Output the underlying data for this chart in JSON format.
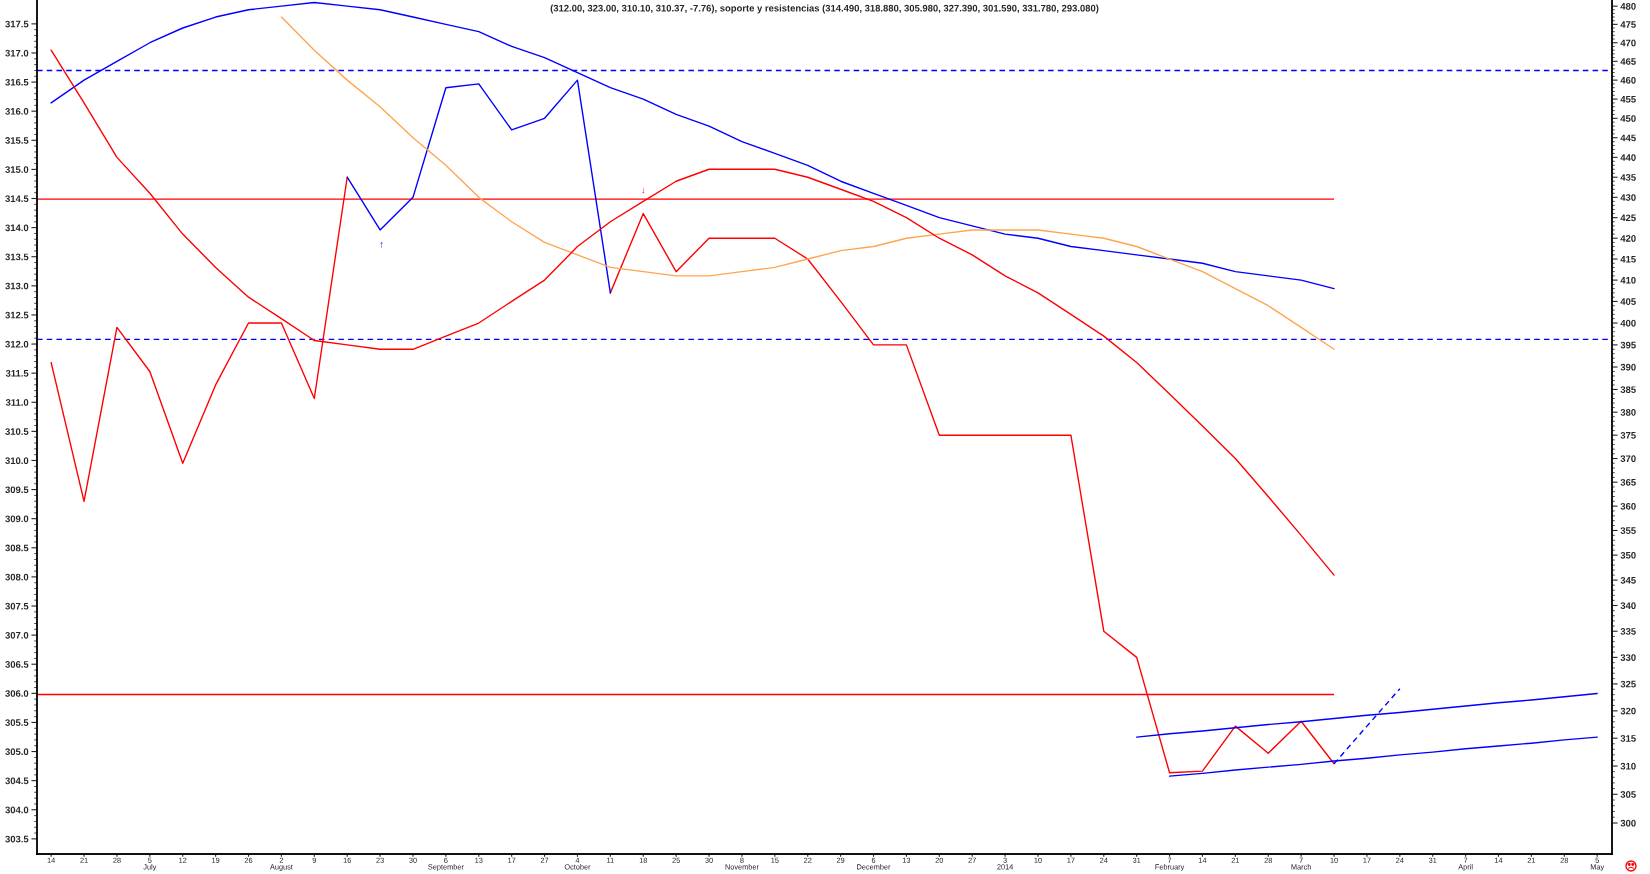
{
  "chart_data": {
    "type": "line",
    "title": "(312.00, 323.00, 310.10, 310.37, -7.76), soporte y resistencias (314.490, 318.880, 305.980, 327.390, 301.590, 331.780, 293.080)",
    "categories": [
      "14",
      "21",
      "28",
      "5\nJuly",
      "12",
      "19",
      "26",
      "2\nAugust",
      "9",
      "16",
      "23",
      "30",
      "6\nSeptember",
      "13",
      "17",
      "27",
      "4\nOctober",
      "11",
      "18",
      "25",
      "30",
      "8\nNovember",
      "15",
      "22",
      "29",
      "6\nDecember",
      "13",
      "20",
      "27",
      "3\n2014",
      "10",
      "17",
      "24",
      "31",
      "7\nFebruary",
      "14",
      "21",
      "28",
      "7\nMarch",
      "10",
      "17",
      "24",
      "31",
      "7\nApril",
      "14",
      "21",
      "28",
      "5\nMay"
    ],
    "series": [
      {
        "color": "#ff0000",
        "axis": "y2",
        "values": [
          391,
          361,
          399,
          389,
          369,
          386,
          400,
          400,
          383,
          435,
          null,
          null,
          null,
          null,
          null,
          null,
          null,
          407,
          426,
          412,
          420,
          420,
          420,
          415,
          405,
          395,
          395,
          375,
          375,
          375,
          375,
          375,
          335,
          330,
          308.8,
          309.1,
          317.2,
          312.3,
          318.1,
          310.4,
          null,
          null,
          null,
          null,
          null,
          null,
          null,
          null
        ]
      },
      {
        "color": "#0000ff",
        "axis": "y2",
        "values": [
          null,
          null,
          null,
          null,
          null,
          null,
          null,
          null,
          null,
          435,
          422,
          430,
          458,
          459,
          447,
          450,
          460,
          407,
          null,
          null,
          null,
          null,
          null,
          null,
          null,
          null,
          null,
          null,
          null,
          null,
          null,
          null,
          null,
          null,
          null,
          null,
          null,
          null,
          null,
          null,
          null,
          null,
          null,
          null,
          null,
          null,
          null,
          null
        ]
      },
      {
        "color": "#0000ff",
        "axis": "y2",
        "values": [
          454,
          460,
          465,
          470,
          474,
          477,
          479,
          480,
          481,
          480,
          479,
          477,
          475,
          473,
          469,
          466,
          462,
          458,
          455,
          451,
          448,
          444,
          441,
          438,
          434,
          431,
          428,
          425,
          423,
          421,
          420,
          418,
          417,
          416,
          415,
          414,
          412,
          411,
          410,
          408,
          null,
          null,
          null,
          null,
          null,
          null,
          null,
          null
        ]
      },
      {
        "color": "#ffa54f",
        "axis": "y2",
        "values": [
          null,
          null,
          null,
          null,
          null,
          null,
          null,
          477,
          468,
          460,
          453,
          445,
          438,
          430,
          424,
          419,
          416,
          413,
          412,
          411,
          411,
          412,
          413,
          415,
          417,
          418,
          420,
          421,
          422,
          422,
          422,
          421,
          420,
          418,
          415,
          412,
          408,
          404,
          399,
          394,
          null,
          null,
          null,
          null,
          null,
          null,
          null,
          null
        ]
      },
      {
        "color": "#ff0000",
        "axis": "y2",
        "values": [
          468,
          454,
          440,
          431,
          421,
          413,
          406,
          401,
          396,
          395,
          394,
          394,
          397,
          400,
          405,
          410,
          418,
          424,
          429,
          434,
          437,
          437,
          437,
          435,
          432,
          429,
          425,
          420,
          416,
          411,
          407,
          402,
          397,
          391,
          384,
          377,
          370,
          362,
          354,
          346,
          null,
          null,
          null,
          null,
          null,
          null,
          null,
          null
        ]
      },
      {
        "color": "#0000ff",
        "axis": "y2",
        "values": [
          null,
          null,
          null,
          null,
          null,
          null,
          null,
          null,
          null,
          null,
          null,
          null,
          null,
          null,
          null,
          null,
          null,
          null,
          null,
          null,
          null,
          null,
          null,
          null,
          null,
          null,
          null,
          null,
          null,
          null,
          null,
          null,
          null,
          315.2,
          315.8,
          316.3,
          316.9,
          317.5,
          318.0,
          318.6,
          319.2,
          319.7,
          320.3,
          320.9,
          321.5,
          322.0,
          322.6,
          323.2
        ]
      },
      {
        "color": "#0000ff",
        "axis": "y2",
        "values": [
          null,
          null,
          null,
          null,
          null,
          null,
          null,
          null,
          null,
          null,
          null,
          null,
          null,
          null,
          null,
          null,
          null,
          null,
          null,
          null,
          null,
          null,
          null,
          null,
          null,
          null,
          null,
          null,
          null,
          null,
          null,
          null,
          null,
          null,
          308.2,
          308.7,
          309.3,
          309.8,
          310.3,
          310.9,
          311.4,
          312.0,
          312.5,
          313.1,
          313.6,
          314.1,
          314.7,
          315.2
        ]
      },
      {
        "color": "#0000ff",
        "axis": "y2",
        "line_style": "dashed",
        "values": [
          null,
          null,
          null,
          null,
          null,
          null,
          null,
          null,
          null,
          null,
          null,
          null,
          null,
          null,
          null,
          null,
          null,
          null,
          null,
          null,
          null,
          null,
          null,
          null,
          null,
          null,
          null,
          null,
          null,
          null,
          null,
          null,
          null,
          null,
          null,
          null,
          null,
          null,
          null,
          310.4,
          317.2,
          324.1,
          null,
          null,
          null,
          null,
          null,
          null
        ]
      }
    ],
    "ref_lines": [
      {
        "axis": "y",
        "value": 314.49,
        "color": "#ff0000"
      },
      {
        "axis": "y",
        "value": 305.98,
        "color": "#ff0000"
      },
      {
        "axis": "y",
        "value": 316.7,
        "color": "#0000ff",
        "line_style": "dashed"
      },
      {
        "axis": "y",
        "value": 312.08,
        "color": "#0000ff",
        "line_style": "dashed"
      }
    ],
    "annotations": [
      "↑",
      "↓"
    ],
    "ylim": [
      303.24,
      317.91
    ],
    "yticks": [
      303.5,
      {
        "value": 304,
        "label": "304.0"
      },
      304.5,
      {
        "value": 305,
        "label": "305.0"
      },
      305.5,
      {
        "value": 306,
        "label": "306.0"
      },
      306.5,
      {
        "value": 307,
        "label": "307.0"
      },
      307.5,
      {
        "value": 308,
        "label": "308.0"
      },
      308.5,
      {
        "value": 309,
        "label": "309.0"
      },
      309.5,
      {
        "value": 310,
        "label": "310.0"
      },
      310.5,
      {
        "value": 311,
        "label": "311.0"
      },
      311.5,
      {
        "value": 312,
        "label": "312.0"
      },
      312.5,
      {
        "value": 313,
        "label": "313.0"
      },
      313.5,
      {
        "value": 314,
        "label": "314.0"
      },
      314.5,
      {
        "value": 315,
        "label": "315.0"
      },
      315.5,
      {
        "value": 316,
        "label": "316.0"
      },
      316.5,
      {
        "value": 317,
        "label": "317.0"
      },
      317.5
    ],
    "log": "y2",
    "y2lim": [
      294.7,
      481.7
    ],
    "y2ticks": [
      300,
      305,
      310,
      315,
      320,
      325,
      330,
      335,
      340,
      345,
      350,
      355,
      360,
      365,
      370,
      375,
      380,
      385,
      390,
      395,
      400,
      405,
      410,
      415,
      420,
      425,
      430,
      435,
      440,
      445,
      450,
      455,
      460,
      465,
      470,
      475,
      480
    ]
  }
}
